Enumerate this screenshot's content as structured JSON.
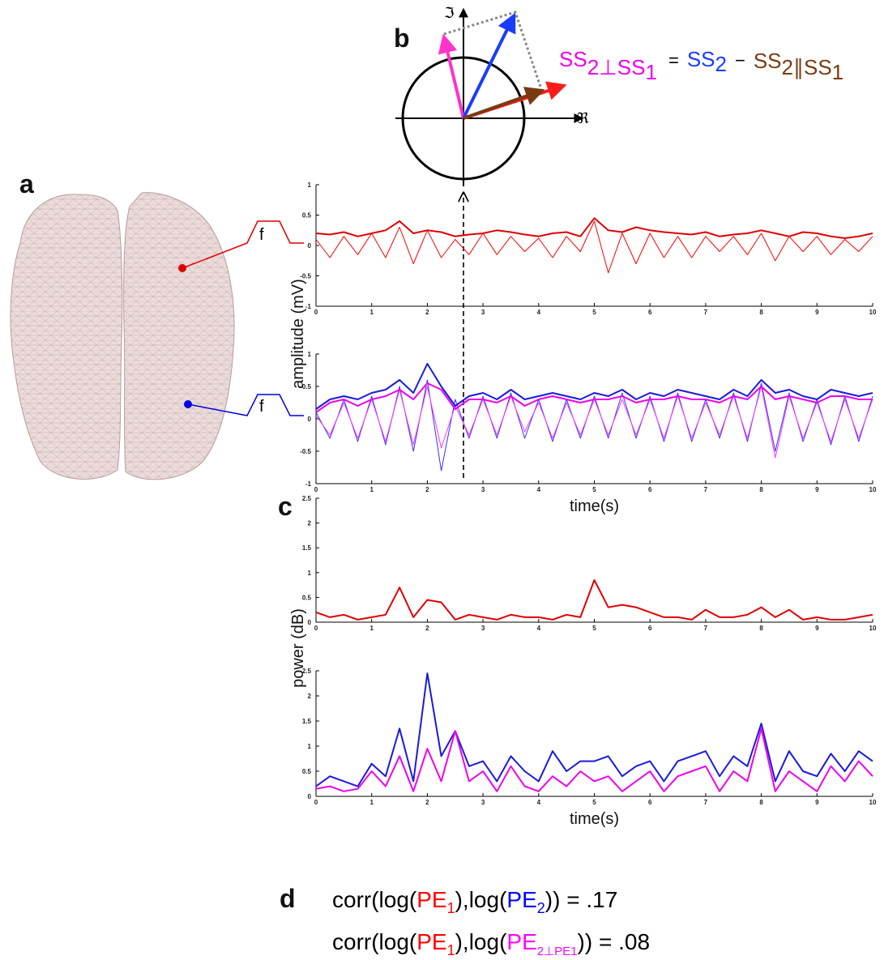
{
  "panel_labels": [
    "a",
    "b",
    "c",
    "d"
  ],
  "filters": [
    "f",
    "f"
  ],
  "phasor": {
    "imag_axis": "ℑ",
    "real_axis": "ℜ",
    "equation": [
      "SS",
      "2⊥SS",
      "1",
      "=",
      "SS",
      "2",
      "−",
      "SS",
      "2∥SS",
      "1"
    ]
  },
  "correlations": {
    "lines": [
      [
        "corr(log(",
        "PE",
        "1",
        "),log(",
        "PE",
        "2",
        ")) = .17"
      ],
      [
        "corr(log(",
        "PE",
        "1",
        "),log(",
        "PE",
        "2⊥PE1",
        ")) = .08"
      ]
    ]
  },
  "chart_data": [
    {
      "type": "line",
      "ylabel": "amplitude (mV)",
      "x": [
        0,
        0.25,
        0.5,
        0.75,
        1,
        1.25,
        1.5,
        1.75,
        2,
        2.25,
        2.5,
        2.75,
        3,
        3.25,
        3.5,
        3.75,
        4,
        4.25,
        4.5,
        4.75,
        5,
        5.25,
        5.5,
        5.75,
        6,
        6.25,
        6.5,
        6.75,
        7,
        7.25,
        7.5,
        7.75,
        8,
        8.25,
        8.5,
        8.75,
        9,
        9.25,
        9.5,
        9.75,
        10
      ],
      "xlim": [
        0,
        10
      ],
      "xticks": [
        0,
        1,
        2,
        3,
        4,
        5,
        6,
        7,
        8,
        9,
        10
      ],
      "ylim": [
        -1,
        1
      ],
      "yticks": [
        -1,
        -0.5,
        0,
        0.5,
        1
      ],
      "series": [
        {
          "color": "#ff0000",
          "linewidth": 1,
          "values": [
            0.1,
            -0.2,
            0.15,
            -0.15,
            0.2,
            -0.2,
            0.3,
            -0.3,
            0.25,
            -0.2,
            0.1,
            -0.15,
            0.2,
            -0.15,
            0.15,
            -0.1,
            0.12,
            -0.2,
            0.15,
            -0.1,
            0.4,
            -0.45,
            0.2,
            -0.3,
            0.2,
            -0.2,
            0.15,
            -0.2,
            0.15,
            -0.1,
            0.15,
            -0.15,
            0.2,
            -0.25,
            0.15,
            -0.1,
            0.15,
            -0.15,
            0.1,
            -0.1,
            0.15
          ]
        },
        {
          "color": "#e00000",
          "linewidth": 2,
          "values": [
            0.2,
            0.18,
            0.22,
            0.15,
            0.2,
            0.25,
            0.4,
            0.2,
            0.25,
            0.22,
            0.15,
            0.18,
            0.2,
            0.25,
            0.22,
            0.18,
            0.15,
            0.2,
            0.22,
            0.15,
            0.45,
            0.25,
            0.22,
            0.3,
            0.25,
            0.22,
            0.2,
            0.18,
            0.22,
            0.15,
            0.18,
            0.2,
            0.25,
            0.2,
            0.15,
            0.22,
            0.2,
            0.15,
            0.12,
            0.15,
            0.2
          ]
        }
      ]
    },
    {
      "type": "line",
      "xlabel": "time(s)",
      "x": [
        0,
        0.25,
        0.5,
        0.75,
        1,
        1.25,
        1.5,
        1.75,
        2,
        2.25,
        2.5,
        2.75,
        3,
        3.25,
        3.5,
        3.75,
        4,
        4.25,
        4.5,
        4.75,
        5,
        5.25,
        5.5,
        5.75,
        6,
        6.25,
        6.5,
        6.75,
        7,
        7.25,
        7.5,
        7.75,
        8,
        8.25,
        8.5,
        8.75,
        9,
        9.25,
        9.5,
        9.75,
        10
      ],
      "xlim": [
        0,
        10
      ],
      "xticks": [
        0,
        1,
        2,
        3,
        4,
        5,
        6,
        7,
        8,
        9,
        10
      ],
      "ylim": [
        -1,
        1
      ],
      "yticks": [
        -1,
        -0.5,
        0,
        0.5,
        1
      ],
      "series": [
        {
          "color": "#3333ff",
          "linewidth": 1,
          "values": [
            0.1,
            -0.3,
            0.3,
            -0.35,
            0.35,
            -0.4,
            0.5,
            -0.5,
            0.6,
            -0.8,
            0.3,
            -0.3,
            0.35,
            -0.3,
            0.4,
            -0.3,
            0.3,
            -0.35,
            0.3,
            -0.3,
            0.35,
            -0.3,
            0.4,
            -0.3,
            0.35,
            -0.35,
            0.4,
            -0.35,
            0.3,
            -0.3,
            0.4,
            -0.35,
            0.55,
            -0.5,
            0.4,
            -0.35,
            0.3,
            -0.4,
            0.35,
            -0.35,
            0.35
          ]
        },
        {
          "color": "#ff33ff",
          "linewidth": 1,
          "values": [
            0.05,
            -0.25,
            0.25,
            -0.3,
            0.3,
            -0.35,
            0.45,
            -0.4,
            0.5,
            -0.45,
            0.2,
            -0.25,
            0.3,
            -0.25,
            0.35,
            -0.2,
            0.25,
            -0.3,
            0.25,
            -0.25,
            0.3,
            -0.25,
            0.3,
            -0.25,
            0.3,
            -0.3,
            0.35,
            -0.3,
            0.25,
            -0.25,
            0.35,
            -0.3,
            0.5,
            -0.6,
            0.35,
            -0.3,
            0.25,
            -0.35,
            0.3,
            -0.3,
            0.3
          ]
        },
        {
          "color": "#1a1add",
          "linewidth": 2,
          "values": [
            0.15,
            0.3,
            0.35,
            0.3,
            0.4,
            0.45,
            0.6,
            0.4,
            0.85,
            0.5,
            0.2,
            0.35,
            0.4,
            0.3,
            0.45,
            0.3,
            0.35,
            0.4,
            0.35,
            0.3,
            0.4,
            0.35,
            0.45,
            0.3,
            0.4,
            0.35,
            0.45,
            0.4,
            0.35,
            0.3,
            0.45,
            0.35,
            0.6,
            0.4,
            0.45,
            0.35,
            0.3,
            0.45,
            0.4,
            0.35,
            0.4
          ]
        },
        {
          "color": "#ee00ee",
          "linewidth": 2,
          "values": [
            0.1,
            0.25,
            0.3,
            0.2,
            0.3,
            0.35,
            0.45,
            0.3,
            0.55,
            0.45,
            0.15,
            0.3,
            0.3,
            0.25,
            0.35,
            0.2,
            0.3,
            0.35,
            0.3,
            0.25,
            0.3,
            0.3,
            0.35,
            0.25,
            0.3,
            0.3,
            0.35,
            0.3,
            0.3,
            0.25,
            0.35,
            0.3,
            0.5,
            0.3,
            0.35,
            0.3,
            0.25,
            0.35,
            0.35,
            0.3,
            0.3
          ]
        }
      ]
    },
    {
      "type": "line",
      "ylabel": "power (dB)",
      "x": [
        0,
        0.25,
        0.5,
        0.75,
        1,
        1.25,
        1.5,
        1.75,
        2,
        2.25,
        2.5,
        2.75,
        3,
        3.25,
        3.5,
        3.75,
        4,
        4.25,
        4.5,
        4.75,
        5,
        5.25,
        5.5,
        5.75,
        6,
        6.25,
        6.5,
        6.75,
        7,
        7.25,
        7.5,
        7.75,
        8,
        8.25,
        8.5,
        8.75,
        9,
        9.25,
        9.5,
        9.75,
        10
      ],
      "xlim": [
        0,
        10
      ],
      "xticks": [
        0,
        1,
        2,
        3,
        4,
        5,
        6,
        7,
        8,
        9,
        10
      ],
      "ylim": [
        0,
        2.5
      ],
      "yticks": [
        0,
        0.5,
        1,
        1.5,
        2,
        2.5
      ],
      "series": [
        {
          "color": "#e00000",
          "linewidth": 2,
          "values": [
            0.2,
            0.1,
            0.15,
            0.05,
            0.1,
            0.15,
            0.7,
            0.1,
            0.45,
            0.4,
            0.05,
            0.15,
            0.1,
            0.05,
            0.15,
            0.1,
            0.1,
            0.05,
            0.15,
            0.1,
            0.85,
            0.3,
            0.35,
            0.3,
            0.2,
            0.1,
            0.1,
            0.05,
            0.25,
            0.1,
            0.1,
            0.15,
            0.3,
            0.1,
            0.25,
            0.05,
            0.1,
            0.05,
            0.05,
            0.1,
            0.15
          ]
        }
      ]
    },
    {
      "type": "line",
      "xlabel": "time(s)",
      "x": [
        0,
        0.25,
        0.5,
        0.75,
        1,
        1.25,
        1.5,
        1.75,
        2,
        2.25,
        2.5,
        2.75,
        3,
        3.25,
        3.5,
        3.75,
        4,
        4.25,
        4.5,
        4.75,
        5,
        5.25,
        5.5,
        5.75,
        6,
        6.25,
        6.5,
        6.75,
        7,
        7.25,
        7.5,
        7.75,
        8,
        8.25,
        8.5,
        8.75,
        9,
        9.25,
        9.5,
        9.75,
        10
      ],
      "xlim": [
        0,
        10
      ],
      "xticks": [
        0,
        1,
        2,
        3,
        4,
        5,
        6,
        7,
        8,
        9,
        10
      ],
      "ylim": [
        0,
        2.5
      ],
      "yticks": [
        0,
        0.5,
        1,
        1.5,
        2,
        2.5
      ],
      "series": [
        {
          "color": "#1a1add",
          "linewidth": 2,
          "values": [
            0.2,
            0.4,
            0.3,
            0.2,
            0.65,
            0.4,
            1.35,
            0.3,
            2.45,
            0.8,
            1.3,
            0.6,
            0.7,
            0.3,
            0.8,
            0.5,
            0.3,
            0.9,
            0.5,
            0.7,
            0.7,
            0.8,
            0.4,
            0.6,
            0.7,
            0.3,
            0.7,
            0.8,
            0.9,
            0.4,
            0.8,
            0.6,
            1.45,
            0.3,
            0.9,
            0.5,
            0.4,
            0.85,
            0.5,
            0.9,
            0.7
          ]
        },
        {
          "color": "#ee00ee",
          "linewidth": 2,
          "values": [
            0.15,
            0.2,
            0.1,
            0.15,
            0.5,
            0.2,
            0.8,
            0.1,
            0.95,
            0.3,
            1.3,
            0.3,
            0.5,
            0.1,
            0.6,
            0.2,
            0.1,
            0.4,
            0.2,
            0.5,
            0.3,
            0.4,
            0.1,
            0.3,
            0.5,
            0.1,
            0.4,
            0.5,
            0.6,
            0.1,
            0.5,
            0.3,
            1.35,
            0.1,
            0.5,
            0.3,
            0.1,
            0.6,
            0.3,
            0.7,
            0.4
          ]
        }
      ]
    }
  ]
}
